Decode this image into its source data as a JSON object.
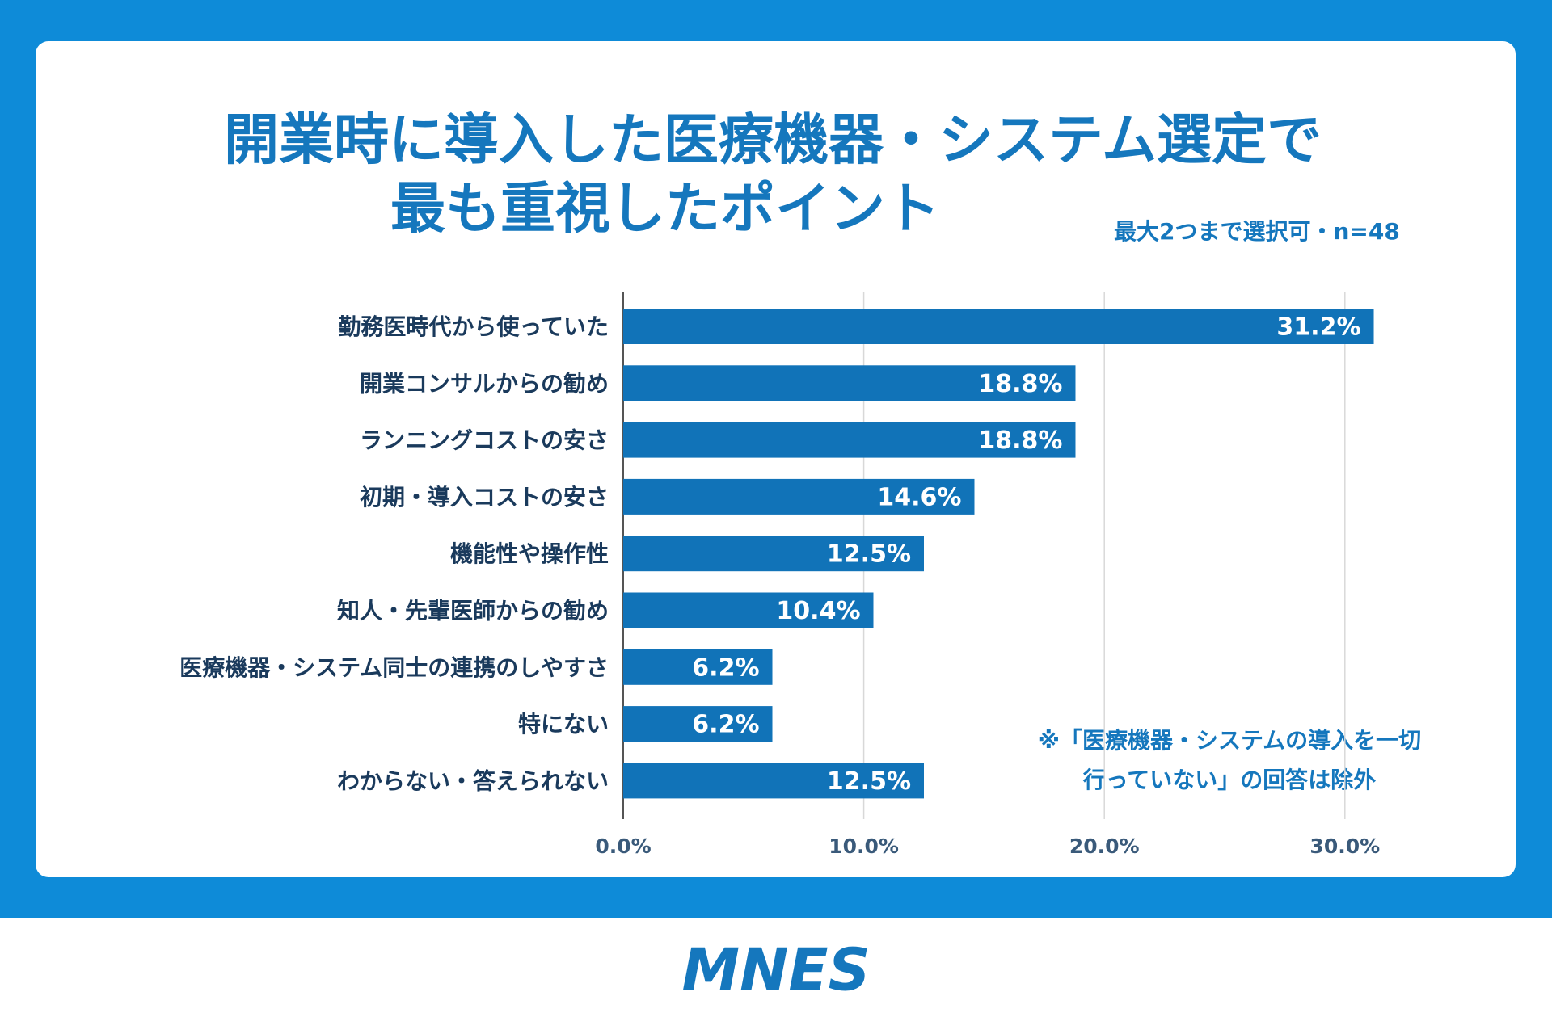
{
  "chart_data": {
    "type": "barh",
    "title": "開業時に導入した医療機器・システム選定で",
    "title_line2": "最も重視したポイント",
    "subtitle": "最大2つまで選択可・n=48",
    "categories": [
      "勤務医時代から使っていた",
      "開業コンサルからの勧め",
      "ランニングコストの安さ",
      "初期・導入コストの安さ",
      "機能性や操作性",
      "知人・先輩医師からの勧め",
      "医療機器・システム同士の連携のしやすさ",
      "特にない",
      "わからない・答えられない"
    ],
    "values": [
      31.2,
      18.8,
      18.8,
      14.6,
      12.5,
      10.4,
      6.2,
      6.2,
      12.5
    ],
    "value_labels": [
      "31.2%",
      "18.8%",
      "18.8%",
      "14.6%",
      "12.5%",
      "10.4%",
      "6.2%",
      "6.2%",
      "12.5%"
    ],
    "color": "#1173b8",
    "xlim": [
      0,
      33
    ],
    "xticks": [
      {
        "value": 0,
        "label": "0.0%"
      },
      {
        "value": 10,
        "label": "10.0%"
      },
      {
        "value": 20,
        "label": "20.0%"
      },
      {
        "value": 30,
        "label": "30.0%"
      }
    ],
    "grid": true,
    "annotation": [
      "※「医療機器・システムの導入を一切",
      "行っていない」の回答は除外"
    ],
    "logo": "MNES"
  }
}
